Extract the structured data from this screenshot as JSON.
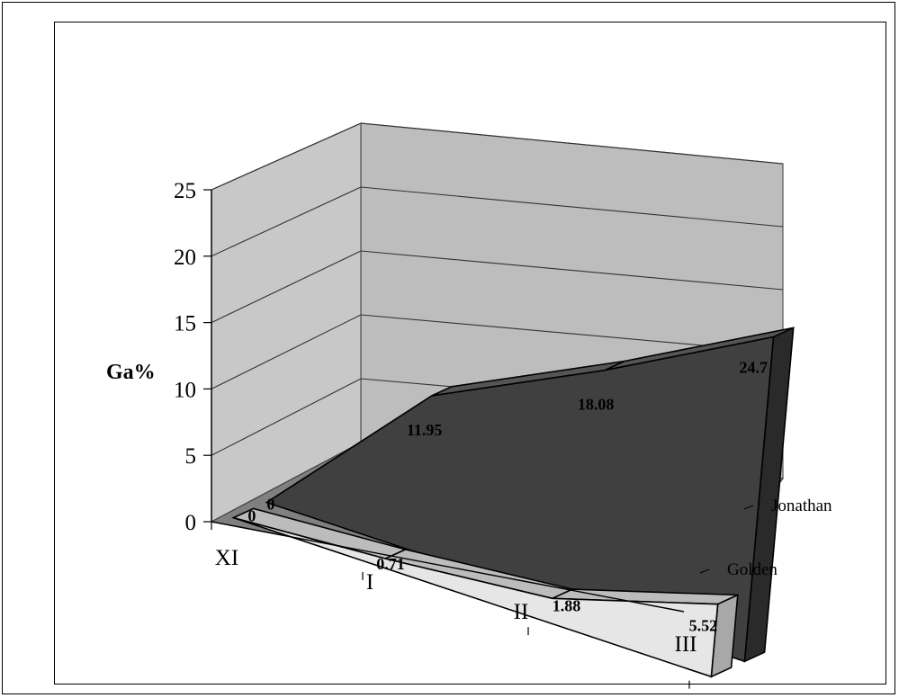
{
  "chart_data": {
    "type": "area",
    "view": "3d",
    "categories": [
      "XI",
      "I",
      "II",
      "III"
    ],
    "series": [
      {
        "name": "Golden",
        "values": [
          0,
          0.71,
          1.88,
          5.52
        ],
        "color": "#e6e6e6"
      },
      {
        "name": "Jonathan",
        "values": [
          0,
          11.95,
          18.08,
          24.7
        ],
        "color": "#404040"
      }
    ],
    "title": "",
    "xlabel": "",
    "ylabel": "Ga%",
    "ylim": [
      0,
      25
    ],
    "yticks": [
      0,
      5,
      10,
      15,
      20,
      25
    ],
    "grid": true,
    "legend": "none"
  }
}
